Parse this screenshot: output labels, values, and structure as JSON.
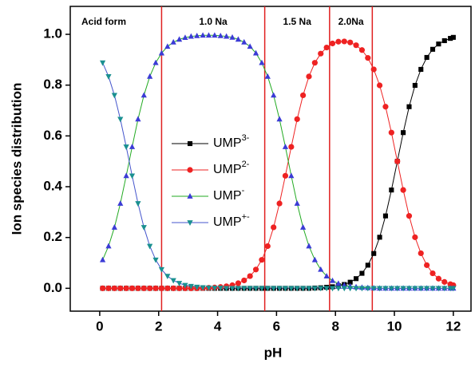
{
  "chart_data": {
    "type": "line",
    "x_label": "pH",
    "y_label": "Ion species distribution",
    "x": [
      0.1,
      0.3,
      0.5,
      0.7,
      0.9,
      1.1,
      1.3,
      1.5,
      1.7,
      1.9,
      2.1,
      2.3,
      2.5,
      2.7,
      2.9,
      3.1,
      3.3,
      3.5,
      3.7,
      3.9,
      4.1,
      4.3,
      4.5,
      4.7,
      4.9,
      5.1,
      5.3,
      5.5,
      5.7,
      5.9,
      6.1,
      6.3,
      6.5,
      6.7,
      6.9,
      7.1,
      7.3,
      7.5,
      7.7,
      7.9,
      8.1,
      8.3,
      8.5,
      8.7,
      8.9,
      9.1,
      9.3,
      9.5,
      9.7,
      9.9,
      10.1,
      10.3,
      10.5,
      10.7,
      10.9,
      11.1,
      11.3,
      11.5,
      11.7,
      11.9,
      12.0
    ],
    "series": [
      {
        "name": "UMP",
        "charge": "3-",
        "color": "#000000",
        "line_color": "#000000",
        "marker": "square",
        "values": [
          0,
          0,
          0,
          0,
          0,
          0,
          0,
          0,
          0,
          0,
          0,
          0,
          0,
          0,
          0,
          0,
          0,
          0,
          0,
          0,
          0,
          0,
          0,
          0,
          0,
          0,
          0,
          0,
          0,
          0,
          0,
          0,
          0,
          0,
          0,
          0,
          0.001,
          0.002,
          0.004,
          0.006,
          0.01,
          0.015,
          0.024,
          0.038,
          0.059,
          0.091,
          0.137,
          0.201,
          0.285,
          0.387,
          0.5,
          0.613,
          0.715,
          0.799,
          0.862,
          0.909,
          0.941,
          0.962,
          0.975,
          0.984,
          0.988
        ]
      },
      {
        "name": "UMP",
        "charge": "2-",
        "color": "#ee2222",
        "line_color": "#ee2222",
        "marker": "circle",
        "values": [
          0,
          0,
          0,
          0,
          0,
          0,
          0,
          0,
          0,
          0,
          0,
          0,
          0,
          0,
          0,
          0,
          0,
          0.001,
          0.002,
          0.003,
          0.005,
          0.008,
          0.012,
          0.02,
          0.031,
          0.048,
          0.074,
          0.112,
          0.166,
          0.24,
          0.334,
          0.443,
          0.557,
          0.666,
          0.76,
          0.834,
          0.888,
          0.924,
          0.948,
          0.964,
          0.971,
          0.972,
          0.968,
          0.957,
          0.938,
          0.907,
          0.862,
          0.799,
          0.715,
          0.613,
          0.5,
          0.387,
          0.285,
          0.201,
          0.138,
          0.091,
          0.059,
          0.038,
          0.025,
          0.016,
          0.012
        ]
      },
      {
        "name": "UMP",
        "charge": "-",
        "color": "#3b3bd6",
        "line_color": "#22aa22",
        "marker": "triangle-up",
        "values": [
          0.112,
          0.166,
          0.24,
          0.334,
          0.443,
          0.557,
          0.666,
          0.76,
          0.834,
          0.888,
          0.926,
          0.952,
          0.969,
          0.98,
          0.987,
          0.992,
          0.994,
          0.996,
          0.996,
          0.996,
          0.994,
          0.992,
          0.988,
          0.98,
          0.969,
          0.952,
          0.926,
          0.888,
          0.834,
          0.76,
          0.666,
          0.557,
          0.443,
          0.334,
          0.24,
          0.166,
          0.112,
          0.074,
          0.048,
          0.03,
          0.019,
          0.012,
          0.008,
          0.005,
          0.003,
          0.002,
          0.001,
          0,
          0,
          0,
          0,
          0,
          0,
          0,
          0,
          0,
          0,
          0,
          0,
          0,
          0
        ]
      },
      {
        "name": "UMP",
        "charge": "+-",
        "color": "#1a9090",
        "line_color": "#4455cc",
        "marker": "triangle-down",
        "values": [
          0.888,
          0.834,
          0.76,
          0.666,
          0.557,
          0.443,
          0.334,
          0.24,
          0.166,
          0.112,
          0.074,
          0.048,
          0.031,
          0.02,
          0.012,
          0.008,
          0.005,
          0.003,
          0.002,
          0.001,
          0.001,
          0,
          0,
          0,
          0,
          0,
          0,
          0,
          0,
          0,
          0,
          0,
          0,
          0,
          0,
          0,
          0,
          0,
          0,
          0,
          0,
          0,
          0,
          0,
          0,
          0,
          0,
          0,
          0,
          0,
          0,
          0,
          0,
          0,
          0,
          0,
          0,
          0,
          0,
          0,
          0
        ]
      }
    ],
    "vlines": [
      2.1,
      5.6,
      7.8,
      9.25
    ],
    "vline_color": "#e02020",
    "regions": [
      "Acid form",
      "1.0 Na",
      "1.5 Na",
      "2.0Na"
    ],
    "xlim": [
      -1,
      12.6
    ],
    "xticks": [
      0,
      2,
      4,
      6,
      8,
      10,
      12
    ],
    "ylim": [
      -0.09,
      1.11
    ],
    "yticks": [
      {
        "value": 0,
        "label": "0.0"
      },
      0.2,
      0.4,
      0.6,
      0.8,
      {
        "value": 1,
        "label": "1.0"
      }
    ],
    "grid": false,
    "legend": "center"
  }
}
